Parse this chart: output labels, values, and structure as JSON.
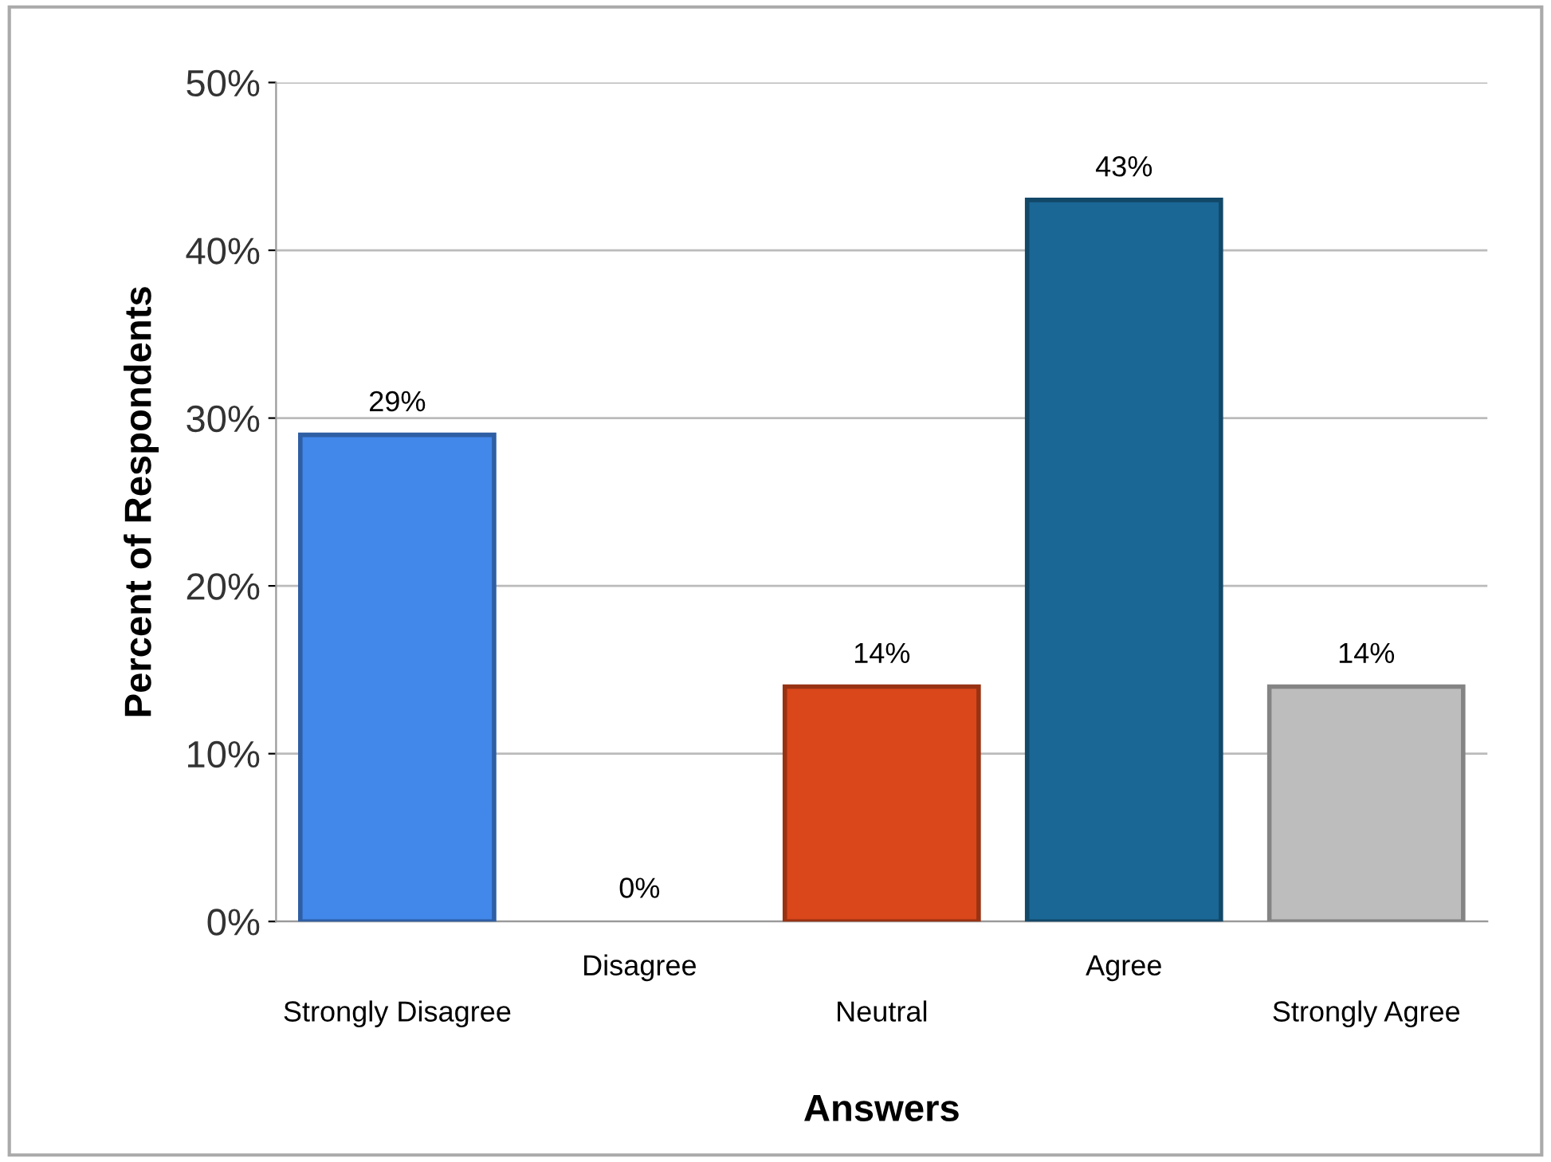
{
  "chart_data": {
    "type": "bar",
    "xlabel": "Answers",
    "ylabel": "Percent of Respondents",
    "categories": [
      "Strongly Disagree",
      "Disagree",
      "Neutral",
      "Agree",
      "Strongly Agree"
    ],
    "values": [
      29,
      0,
      14,
      43,
      14
    ],
    "value_labels": [
      "29%",
      "0%",
      "14%",
      "43%",
      "14%"
    ],
    "colors": [
      "#4287ea",
      "#4287ea",
      "#d9471b",
      "#1a6795",
      "#bdbdbd"
    ],
    "ylim": [
      0,
      50
    ],
    "yticks": [
      {
        "value": 0,
        "label": "0%"
      },
      {
        "value": 10,
        "label": "10%"
      },
      {
        "value": 20,
        "label": "20%"
      },
      {
        "value": 30,
        "label": "30%"
      },
      {
        "value": 40,
        "label": "40%"
      },
      {
        "value": 50,
        "label": "50%"
      }
    ],
    "grid": "y",
    "legend": false
  }
}
